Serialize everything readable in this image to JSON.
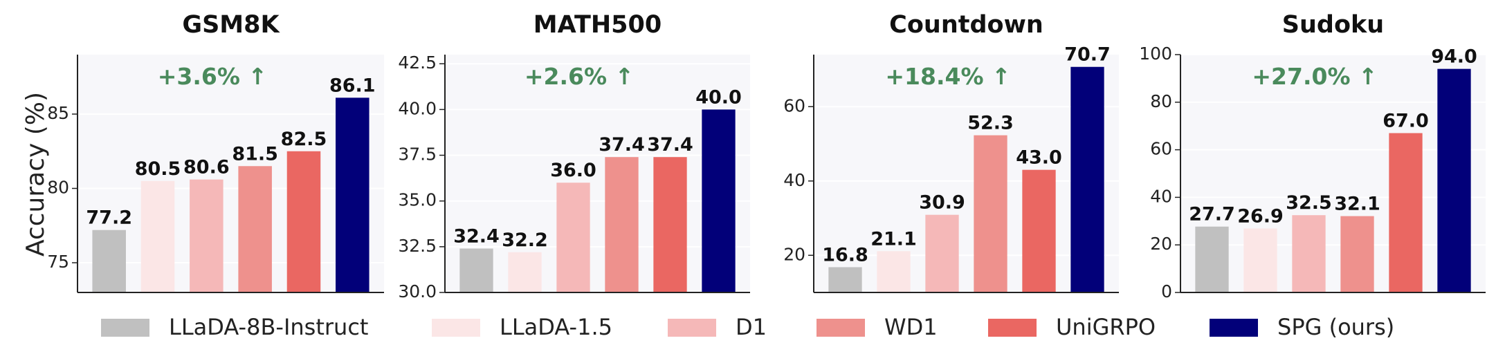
{
  "figure": {
    "ylabel": "Accuracy (%)"
  },
  "legend": [
    {
      "name": "LLaDA-8B-Instruct",
      "color": "#c0c0c0"
    },
    {
      "name": "LLaDA-1.5",
      "color": "#fbe6e6"
    },
    {
      "name": "D1",
      "color": "#f5b8b8"
    },
    {
      "name": "WD1",
      "color": "#ee918d"
    },
    {
      "name": "UniGRPO",
      "color": "#ea6762"
    },
    {
      "name": "SPG (ours)",
      "color": "#020079"
    }
  ],
  "chart_data": [
    {
      "type": "bar",
      "title": "GSM8K",
      "categories": [
        "LLaDA-8B-Instruct",
        "LLaDA-1.5",
        "D1",
        "WD1",
        "UniGRPO",
        "SPG (ours)"
      ],
      "values": [
        77.2,
        80.5,
        80.6,
        81.5,
        82.5,
        86.1
      ],
      "value_labels": [
        "77.2",
        "80.5",
        "80.6",
        "81.5",
        "82.5",
        "86.1"
      ],
      "ylim": [
        73,
        89
      ],
      "yticks": [
        75,
        80,
        85
      ],
      "ytick_labels": [
        "75",
        "80",
        "85"
      ],
      "annotation": "+3.6% ↑",
      "annotation_color": "#4a8a5c",
      "grid": true
    },
    {
      "type": "bar",
      "title": "MATH500",
      "categories": [
        "LLaDA-8B-Instruct",
        "LLaDA-1.5",
        "D1",
        "WD1",
        "UniGRPO",
        "SPG (ours)"
      ],
      "values": [
        32.4,
        32.2,
        36.0,
        37.4,
        37.4,
        40.0
      ],
      "value_labels": [
        "32.4",
        "32.2",
        "36.0",
        "37.4",
        "37.4",
        "40.0"
      ],
      "ylim": [
        30,
        43
      ],
      "yticks": [
        30.0,
        32.5,
        35.0,
        37.5,
        40.0,
        42.5
      ],
      "ytick_labels": [
        "30.0",
        "32.5",
        "35.0",
        "37.5",
        "40.0",
        "42.5"
      ],
      "annotation": "+2.6% ↑",
      "annotation_color": "#4a8a5c",
      "grid": true
    },
    {
      "type": "bar",
      "title": "Countdown",
      "categories": [
        "LLaDA-8B-Instruct",
        "LLaDA-1.5",
        "D1",
        "WD1",
        "UniGRPO",
        "SPG (ours)"
      ],
      "values": [
        16.8,
        21.1,
        30.9,
        52.3,
        43.0,
        70.7
      ],
      "value_labels": [
        "16.8",
        "21.1",
        "30.9",
        "52.3",
        "43.0",
        "70.7"
      ],
      "ylim": [
        10,
        74
      ],
      "yticks": [
        20,
        40,
        60
      ],
      "ytick_labels": [
        "20",
        "40",
        "60"
      ],
      "annotation": "+18.4% ↑",
      "annotation_color": "#4a8a5c",
      "grid": true
    },
    {
      "type": "bar",
      "title": "Sudoku",
      "categories": [
        "LLaDA-8B-Instruct",
        "LLaDA-1.5",
        "D1",
        "WD1",
        "UniGRPO",
        "SPG (ours)"
      ],
      "values": [
        27.7,
        26.9,
        32.5,
        32.1,
        67.0,
        94.0
      ],
      "value_labels": [
        "27.7",
        "26.9",
        "32.5",
        "32.1",
        "67.0",
        "94.0"
      ],
      "ylim": [
        0,
        100
      ],
      "yticks": [
        0,
        20,
        40,
        60,
        80,
        100
      ],
      "ytick_labels": [
        "0",
        "20",
        "40",
        "60",
        "80",
        "100"
      ],
      "annotation": "+27.0% ↑",
      "annotation_color": "#4a8a5c",
      "grid": true
    }
  ]
}
